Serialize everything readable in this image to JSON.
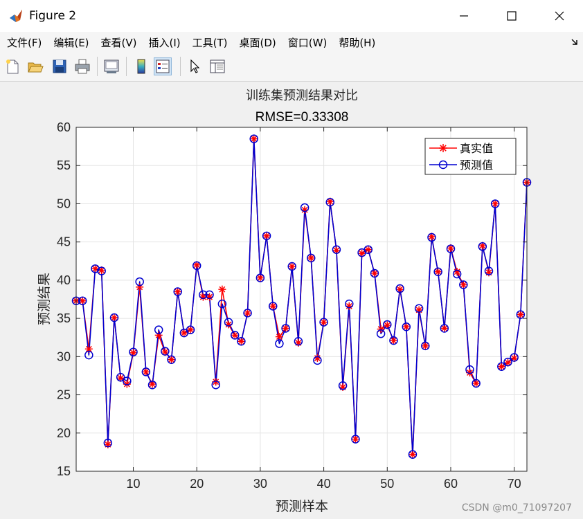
{
  "window": {
    "title": "Figure 2"
  },
  "menu": [
    "文件(F)",
    "编辑(E)",
    "查看(V)",
    "插入(I)",
    "工具(T)",
    "桌面(D)",
    "窗口(W)",
    "帮助(H)"
  ],
  "toolbar": {
    "icons": [
      "new-figure-icon",
      "open-file-icon",
      "save-icon",
      "print-icon",
      "link-plot-icon",
      "colorbar-icon",
      "legend-icon",
      "pointer-icon",
      "property-inspector-icon"
    ]
  },
  "watermark": "CSDN @m0_71097207",
  "chart_data": {
    "type": "line",
    "title": "训练集预测结果对比",
    "subtitle": "RMSE=0.33308",
    "xlabel": "预测样本",
    "ylabel": "预测结果",
    "xlim": [
      1,
      72
    ],
    "ylim": [
      15,
      60
    ],
    "xticks": [
      10,
      20,
      30,
      40,
      50,
      60,
      70
    ],
    "yticks": [
      15,
      20,
      25,
      30,
      35,
      40,
      45,
      50,
      55,
      60
    ],
    "grid": true,
    "legend_position": "top-right",
    "x": [
      1,
      2,
      3,
      4,
      5,
      6,
      7,
      8,
      9,
      10,
      11,
      12,
      13,
      14,
      15,
      16,
      17,
      18,
      19,
      20,
      21,
      22,
      23,
      24,
      25,
      26,
      27,
      28,
      29,
      30,
      31,
      32,
      33,
      34,
      35,
      36,
      37,
      38,
      39,
      40,
      41,
      42,
      43,
      44,
      45,
      46,
      47,
      48,
      49,
      50,
      51,
      52,
      53,
      54,
      55,
      56,
      57,
      58,
      59,
      60,
      61,
      62,
      63,
      64,
      65,
      66,
      67,
      68,
      69,
      70,
      71,
      72
    ],
    "series": [
      {
        "name": "真实值",
        "color": "#ff0000",
        "marker": "asterisk",
        "values": [
          37.3,
          37.3,
          31.0,
          41.5,
          41.3,
          18.5,
          35.1,
          27.2,
          26.4,
          30.5,
          39.1,
          28.0,
          26.4,
          32.8,
          30.6,
          29.6,
          38.5,
          33.1,
          33.5,
          42.0,
          37.8,
          37.8,
          26.7,
          38.8,
          34.2,
          32.8,
          32.0,
          35.7,
          58.5,
          40.3,
          45.8,
          36.6,
          32.6,
          33.7,
          41.8,
          31.8,
          49.2,
          42.9,
          29.8,
          34.5,
          50.3,
          43.9,
          26.0,
          36.6,
          19.2,
          43.5,
          44.0,
          40.9,
          33.6,
          34.1,
          32.1,
          38.8,
          33.9,
          17.2,
          36.1,
          31.4,
          45.7,
          41.1,
          33.7,
          44.2,
          41.1,
          39.4,
          27.9,
          26.5,
          44.5,
          41.0,
          50.0,
          28.7,
          29.2,
          29.8,
          35.5,
          52.8
        ]
      },
      {
        "name": "预测值",
        "color": "#0000d0",
        "marker": "circle",
        "values": [
          37.3,
          37.3,
          30.2,
          41.5,
          41.2,
          18.7,
          35.1,
          27.3,
          26.8,
          30.6,
          39.8,
          28.0,
          26.3,
          33.5,
          30.7,
          29.6,
          38.5,
          33.1,
          33.5,
          41.9,
          38.1,
          38.1,
          26.3,
          36.9,
          34.5,
          32.8,
          32.0,
          35.7,
          58.5,
          40.3,
          45.8,
          36.6,
          31.7,
          33.7,
          41.8,
          32.0,
          49.5,
          42.9,
          29.5,
          34.5,
          50.2,
          44.0,
          26.2,
          36.9,
          19.2,
          43.6,
          44.0,
          40.9,
          33.0,
          34.2,
          32.1,
          38.9,
          33.9,
          17.2,
          36.3,
          31.4,
          45.6,
          41.1,
          33.7,
          44.1,
          40.8,
          39.4,
          28.3,
          26.5,
          44.4,
          41.2,
          50.0,
          28.7,
          29.3,
          29.9,
          35.5,
          52.8
        ]
      }
    ]
  }
}
